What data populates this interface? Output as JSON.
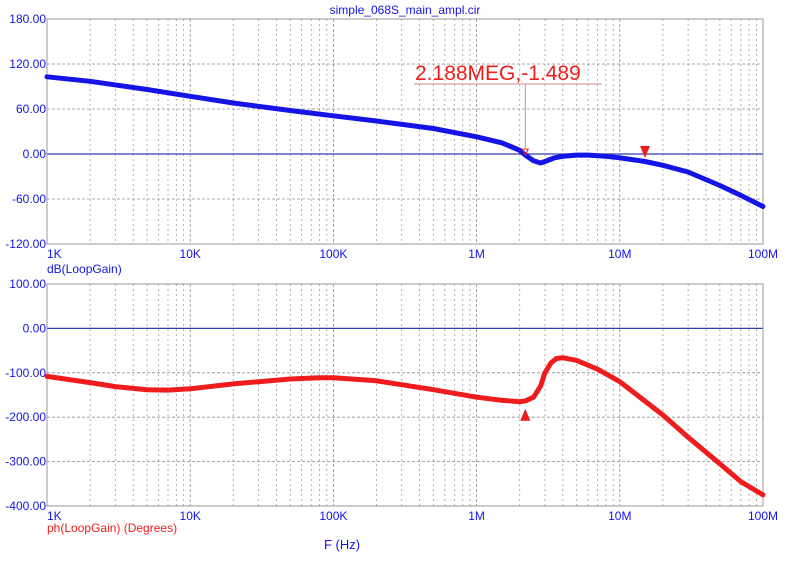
{
  "colors": {
    "magnitude": "#1414e6",
    "phase": "#ee1c1c",
    "zero_line": "#2e3fb8",
    "grid": "#a0a0a0",
    "annotation": "#ee1c1c"
  },
  "chart_data": [
    {
      "type": "line",
      "title": "simple_068S_main_ampl.cir",
      "xscale": "log",
      "xlim": [
        1000,
        100000000
      ],
      "ylim": [
        -120,
        180
      ],
      "yticks": [
        180,
        120,
        60,
        0,
        -60,
        -120
      ],
      "ytick_labels": [
        "180.00",
        "120.00",
        "60.00",
        "0.00",
        "-60.00",
        "-120.00"
      ],
      "xticks": [
        1000,
        10000,
        100000,
        1000000,
        10000000,
        100000000
      ],
      "xtick_labels": [
        "1K",
        "10K",
        "100K",
        "1M",
        "10M",
        "100M"
      ],
      "grid": true,
      "zero_line": true,
      "ylabel": "dB(LoopGain)",
      "series": [
        {
          "name": "dB(LoopGain)",
          "color": "#1414e6",
          "x": [
            1000,
            2000,
            5000,
            10000,
            20000,
            50000,
            100000,
            200000,
            500000,
            1000000,
            1500000,
            2000000,
            2188000,
            2500000,
            2800000,
            3000000,
            3500000,
            4000000,
            5000000,
            6000000,
            8000000,
            10000000,
            15000000,
            20000000,
            30000000,
            50000000,
            70000000,
            100000000
          ],
          "y": [
            103,
            97,
            86,
            77,
            68,
            58,
            51,
            44,
            34,
            23,
            15,
            5,
            -1.5,
            -9,
            -12,
            -10,
            -5,
            -3,
            -1.5,
            -1.5,
            -3,
            -5,
            -10,
            -15,
            -24,
            -42,
            -55,
            -70
          ]
        }
      ],
      "markers": [
        {
          "x": 2188000,
          "y": -1.489,
          "shape": "cursor-line"
        },
        {
          "x": 15000000,
          "y": -8,
          "shape": "triangle-down"
        }
      ],
      "annotation": {
        "text": "2.188MEG,-1.489",
        "x": 2188000,
        "y": -1.489
      }
    },
    {
      "type": "line",
      "xscale": "log",
      "xlim": [
        1000,
        100000000
      ],
      "ylim": [
        -400,
        100
      ],
      "yticks": [
        100,
        0,
        -100,
        -200,
        -300,
        -400
      ],
      "ytick_labels": [
        "100.00",
        "0.00",
        "-100.00",
        "-200.00",
        "-300.00",
        "-400.00"
      ],
      "xticks": [
        1000,
        10000,
        100000,
        1000000,
        10000000,
        100000000
      ],
      "xtick_labels": [
        "1K",
        "10K",
        "100K",
        "1M",
        "10M",
        "100M"
      ],
      "grid": true,
      "zero_line": true,
      "ylabel": "ph(LoopGain) (Degrees)",
      "xlabel": "F (Hz)",
      "series": [
        {
          "name": "ph(LoopGain) (Degrees)",
          "color": "#ee1c1c",
          "x": [
            1000,
            2000,
            3000,
            5000,
            7000,
            10000,
            20000,
            50000,
            80000,
            100000,
            200000,
            500000,
            1000000,
            1500000,
            2000000,
            2200000,
            2500000,
            2800000,
            3000000,
            3300000,
            3600000,
            4000000,
            5000000,
            7000000,
            10000000,
            20000000,
            30000000,
            50000000,
            70000000,
            100000000
          ],
          "y": [
            -108,
            -122,
            -131,
            -138,
            -139,
            -136,
            -125,
            -114,
            -111,
            -111,
            -118,
            -138,
            -155,
            -162,
            -165,
            -163,
            -155,
            -130,
            -100,
            -78,
            -68,
            -66,
            -72,
            -92,
            -120,
            -195,
            -245,
            -305,
            -345,
            -375
          ]
        }
      ],
      "markers": [
        {
          "x": 2188000,
          "y": -163,
          "shape": "triangle-up"
        }
      ]
    }
  ]
}
